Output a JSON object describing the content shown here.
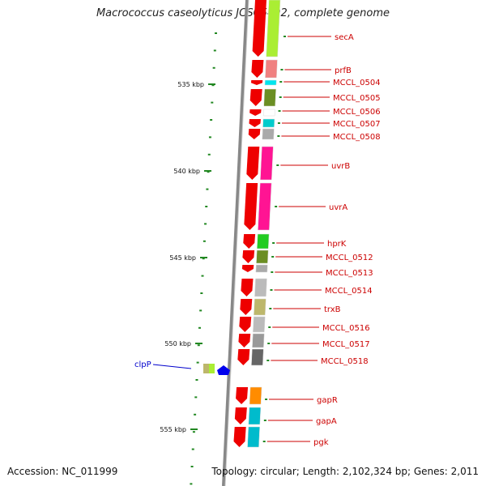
{
  "title": "Macrococcus caseolyticus JCSC5402, complete genome",
  "accession": "Accession: NC_011999",
  "summary": "Topology: circular; Length: 2,102,324 bp; Genes: 2,011",
  "colors": {
    "forward_arrow": "#ee0000",
    "axis": "#888888",
    "tick": "#228822",
    "label_red": "#cc0000",
    "label_blue": "#0000cc"
  },
  "kbp_ticks": [
    "535 kbp",
    "540 kbp",
    "545 kbp",
    "550 kbp",
    "555 kbp"
  ],
  "genes": [
    {
      "name": "secA",
      "cog_color": "#aaee33"
    },
    {
      "name": "prfB",
      "cog_color": "#f08080"
    },
    {
      "name": "MCCL_0504",
      "cog_color": "#00e5ee"
    },
    {
      "name": "MCCL_0505",
      "cog_color": "#6b8e23"
    },
    {
      "name": "MCCL_0506",
      "cog_color": "#ffffff"
    },
    {
      "name": "MCCL_0507",
      "cog_color": "#00cccc"
    },
    {
      "name": "MCCL_0508",
      "cog_color": "#aaaaaa"
    },
    {
      "name": "uvrB",
      "cog_color": "#ff1493"
    },
    {
      "name": "uvrA",
      "cog_color": "#ff1493"
    },
    {
      "name": "hprK",
      "cog_color": "#22cc22"
    },
    {
      "name": "MCCL_0512",
      "cog_color": "#6b8e23"
    },
    {
      "name": "MCCL_0513",
      "cog_color": "#aaaaaa"
    },
    {
      "name": "MCCL_0514",
      "cog_color": "#bbbbbb"
    },
    {
      "name": "trxB",
      "cog_color": "#bdb76b"
    },
    {
      "name": "MCCL_0516",
      "cog_color": "#bbbbbb"
    },
    {
      "name": "MCCL_0517",
      "cog_color": "#999999"
    },
    {
      "name": "MCCL_0518",
      "cog_color": "#666666"
    },
    {
      "name": "gapR",
      "cog_color": "#ff8c00"
    },
    {
      "name": "gapA",
      "cog_color": "#00bbcc"
    },
    {
      "name": "pgk",
      "cog_color": "#00bbcc"
    }
  ],
  "reverse_gene": {
    "name": "clpP",
    "cog_color": "#aaee33"
  }
}
